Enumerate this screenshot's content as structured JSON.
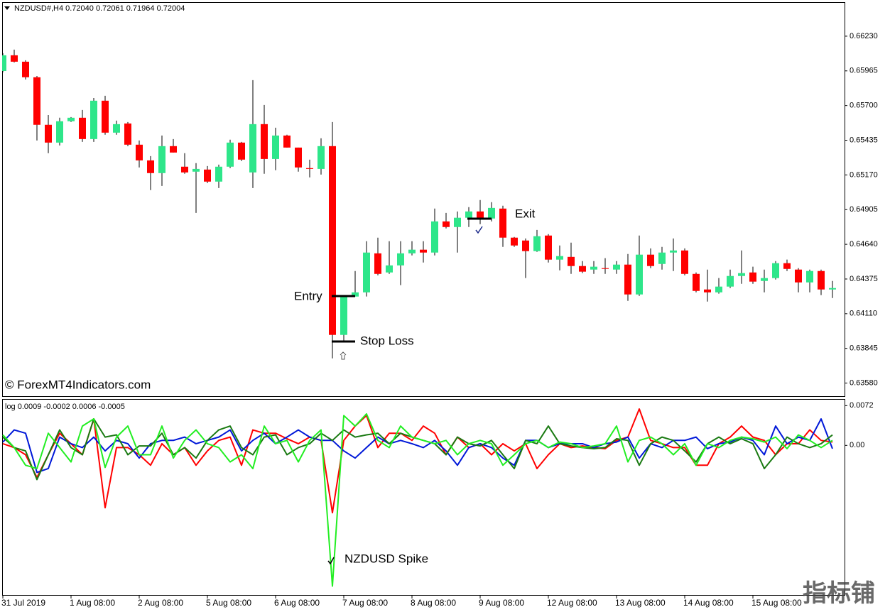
{
  "chart_data": [
    {
      "type": "candlestick",
      "title": "NZDUSD#,H4  0.72040 0.72061 0.71964 0.72004",
      "open": [
        0.65964,
        0.66084,
        0.66035,
        0.65916,
        0.65553,
        0.65417,
        0.6558,
        0.65607,
        0.65444,
        0.65737,
        0.65493,
        0.65563,
        0.65401,
        0.65281,
        0.65184,
        0.6539,
        0.65233,
        0.65195,
        0.65211,
        0.65119,
        0.65233,
        0.65417,
        0.65189,
        0.65558,
        0.65292,
        0.65471,
        0.65379,
        0.65222,
        0.65216,
        0.6539,
        0.63948,
        0.64241,
        0.64273,
        0.64571,
        0.64425,
        0.64479,
        0.64571,
        0.64599,
        0.64577,
        0.64815,
        0.64772,
        0.64843,
        0.64891,
        0.64837,
        0.64913,
        0.64691,
        0.64669,
        0.64588,
        0.64707,
        0.64523,
        0.64544,
        0.64474,
        0.64447,
        0.64458,
        0.64447,
        0.64485,
        0.64257,
        0.64561,
        0.6449,
        0.64577,
        0.64593,
        0.64414,
        0.64295,
        0.64273,
        0.64317,
        0.64398,
        0.64425,
        0.6436,
        0.64382,
        0.64496,
        0.64447,
        0.64349,
        0.64436,
        0.64295
      ],
      "high": [
        0.661,
        0.66127,
        0.66046,
        0.65926,
        0.65628,
        0.65607,
        0.65612,
        0.65666,
        0.65758,
        0.65775,
        0.65585,
        0.65574,
        0.65433,
        0.65314,
        0.65471,
        0.65444,
        0.65336,
        0.6526,
        0.65238,
        0.65249,
        0.65439,
        0.65422,
        0.65894,
        0.65704,
        0.65531,
        0.65477,
        0.65379,
        0.65287,
        0.6545,
        0.65574,
        0.64252,
        0.64436,
        0.64664,
        0.64691,
        0.64664,
        0.64664,
        0.64664,
        0.64664,
        0.64913,
        0.6488,
        0.64891,
        0.64924,
        0.64978,
        0.64962,
        0.64935,
        0.64696,
        0.64685,
        0.6475,
        0.64718,
        0.64631,
        0.64653,
        0.64512,
        0.64512,
        0.64534,
        0.64512,
        0.64566,
        0.64707,
        0.64609,
        0.6462,
        0.64685,
        0.64609,
        0.64425,
        0.64447,
        0.64382,
        0.64447,
        0.64593,
        0.64469,
        0.64447,
        0.64512,
        0.64523,
        0.64458,
        0.64447,
        0.64447,
        0.6436
      ],
      "low": [
        0.65954,
        0.66029,
        0.65899,
        0.65433,
        0.65336,
        0.65395,
        0.65574,
        0.65422,
        0.65422,
        0.65477,
        0.65477,
        0.6539,
        0.65227,
        0.65054,
        0.65086,
        0.65341,
        0.65179,
        0.6488,
        0.65108,
        0.6507,
        0.65222,
        0.65276,
        0.6507,
        0.65179,
        0.65206,
        0.65379,
        0.65195,
        0.65151,
        0.65173,
        0.63769,
        0.63905,
        0.64241,
        0.64241,
        0.64403,
        0.64414,
        0.64328,
        0.64555,
        0.64501,
        0.64555,
        0.64761,
        0.64577,
        0.64772,
        0.64794,
        0.64815,
        0.6462,
        0.6462,
        0.64382,
        0.64582,
        0.64501,
        0.64441,
        0.64414,
        0.6442,
        0.64414,
        0.64414,
        0.64414,
        0.64208,
        0.64246,
        0.64458,
        0.64447,
        0.64436,
        0.64403,
        0.64273,
        0.64203,
        0.64263,
        0.64306,
        0.64338,
        0.64338,
        0.64273,
        0.64371,
        0.64436,
        0.64273,
        0.64273,
        0.64252,
        0.6423
      ],
      "close": [
        0.66084,
        0.66035,
        0.65916,
        0.65553,
        0.65417,
        0.6558,
        0.65607,
        0.65444,
        0.65737,
        0.65493,
        0.65558,
        0.65401,
        0.65281,
        0.65184,
        0.6539,
        0.65341,
        0.65189,
        0.65216,
        0.65119,
        0.65233,
        0.65417,
        0.65287,
        0.65558,
        0.65292,
        0.65471,
        0.65379,
        0.65227,
        0.65216,
        0.6539,
        0.63948,
        0.64241,
        0.64273,
        0.64577,
        0.64414,
        0.64479,
        0.64571,
        0.64599,
        0.64577,
        0.64815,
        0.64772,
        0.64843,
        0.64891,
        0.64837,
        0.64918,
        0.64691,
        0.64631,
        0.64588,
        0.64702,
        0.64523,
        0.6455,
        0.64474,
        0.64431,
        0.64469,
        0.64452,
        0.64485,
        0.64257,
        0.64561,
        0.64474,
        0.64577,
        0.64593,
        0.64414,
        0.64284,
        0.64273,
        0.64317,
        0.64398,
        0.6442,
        0.64355,
        0.64382,
        0.64496,
        0.64452,
        0.64349,
        0.64436,
        0.64295,
        0.64306
      ],
      "up_color": "#2ee68a",
      "down_color": "#ff0000",
      "wick_color": "#000000",
      "ylim": [
        0.6348,
        0.6649
      ],
      "yticks": [
        {
          "value": 0.6623,
          "label": "0.66230"
        },
        0.65965,
        {
          "value": 0.657,
          "label": "0.65700"
        },
        0.65435,
        {
          "value": 0.6517,
          "label": "0.65170"
        },
        0.64905,
        {
          "value": 0.6464,
          "label": "0.64640"
        },
        0.64375,
        {
          "value": 0.6411,
          "label": "0.64110"
        },
        0.63845,
        {
          "value": 0.6358,
          "label": "0.63580"
        }
      ],
      "annotations": [
        "Entry",
        "Exit",
        "Stop Loss",
        "© ForexMT4Indicators.com"
      ]
    },
    {
      "type": "line",
      "title": "log 0.0009 -0.0002 0.0006 -0.0005",
      "categories": [
        "31 Jul 2019",
        null,
        null,
        null,
        null,
        null,
        "1 Aug 08:00",
        null,
        null,
        null,
        null,
        null,
        "2 Aug 08:00",
        null,
        null,
        null,
        null,
        null,
        "5 Aug 08:00",
        null,
        null,
        null,
        null,
        null,
        "6 Aug 08:00",
        null,
        null,
        null,
        null,
        null,
        "7 Aug 08:00",
        null,
        null,
        null,
        null,
        null,
        "8 Aug 08:00",
        null,
        null,
        null,
        null,
        null,
        "9 Aug 08:00",
        null,
        null,
        null,
        null,
        null,
        "12 Aug 08:00",
        null,
        null,
        null,
        null,
        null,
        "13 Aug 08:00",
        null,
        null,
        null,
        null,
        null,
        "14 Aug 08:00",
        null,
        null,
        null,
        null,
        null,
        "15 Aug 08:00",
        null,
        null,
        null,
        null,
        null,
        null,
        null
      ],
      "series": [
        {
          "color": "#ff0000",
          "values": [
            0.0003,
            -0.0004,
            -0.0017,
            -0.0058,
            -0.0017,
            0.0022,
            0.0003,
            -0.0017,
            0.0048,
            -0.0113,
            -0.0004,
            -0.0004,
            -0.0017,
            -0.0036,
            0.0003,
            -0.0017,
            -0.0004,
            -0.0036,
            -0.001,
            0.0009,
            0.0015,
            -0.0036,
            0.0028,
            0.0022,
            0.0022,
            0.0012,
            0.0003,
            0.0015,
            0.0009,
            -0.0122,
            0.0009,
            0.0035,
            0.0054,
            -0.0004,
            0.0022,
            0.0022,
            0.0009,
            0.0035,
            0.0022,
            -0.0017,
            0.0015,
            -0.0004,
            0.0003,
            -0.0017,
            0.0003,
            -0.001,
            0.0003,
            -0.0042,
            -0.0017,
            0.0003,
            -0.0004,
            -0.0001,
            -0.0004,
            -0.0006,
            0.0009,
            0.0015,
            0.0066,
            0.0009,
            0.0003,
            -0.0004,
            -0.0004,
            -0.0036,
            -0.0036,
            0.0003,
            0.0015,
            0.0035,
            0.0015,
            0.0009,
            -0.0017,
            0.0003,
            0.0003,
            0.0028,
            0.0009,
            0.0006
          ]
        },
        {
          "color": "#0018d8",
          "values": [
            0.0006,
            0.0028,
            0.0022,
            -0.0049,
            -0.0042,
            0.0015,
            0.0003,
            -0.0004,
            0.0015,
            -0.001,
            0.0009,
            0.0003,
            -0.0023,
            0.0003,
            0.0009,
            0.0009,
            0.0015,
            0.0003,
            0.0009,
            0.0015,
            0.0028,
            -0.001,
            0.0009,
            0.0022,
            0.0003,
            0.0015,
            0.0028,
            0.0015,
            0.0009,
            0.0009,
            -0.001,
            -0.0023,
            -0.0004,
            0.0015,
            0.0003,
            0.0009,
            0.0003,
            -0.0004,
            0.0009,
            -0.001,
            -0.0036,
            -0.0004,
            0.0003,
            -0.0004,
            -0.0023,
            -0.0036,
            0.0009,
            0.0009,
            -0.0004,
            0.0003,
            0.0003,
            0.0003,
            -0.0004,
            0.0003,
            0.0006,
            0.0015,
            -0.0023,
            0.0003,
            -0.0004,
            0.0009,
            0.0009,
            0.0015,
            -0.0006,
            0.0003,
            0.0006,
            0.0015,
            0.0009,
            -0.0017,
            0.0035,
            0.0003,
            0.0015,
            0.0009,
            0.0048,
            -0.0006
          ]
        },
        {
          "color": "#1a7a12",
          "values": [
            0.0015,
            -0.0004,
            -0.001,
            -0.0062,
            -0.0017,
            0.0028,
            -0.0004,
            -0.0017,
            0.0048,
            0.0015,
            0.0019,
            -0.0017,
            -0.0001,
            -0.0001,
            0.0022,
            -0.0017,
            -0.0004,
            -0.0023,
            0.0009,
            0.0028,
            0.0035,
            -0.0004,
            -0.0017,
            0.0015,
            0.0019,
            -0.0017,
            -0.0004,
            0.0003,
            0.0022,
            0.0009,
            0.0028,
            0.0015,
            0.0019,
            0.0022,
            0.0003,
            0.0022,
            0.0015,
            0.0009,
            0.0003,
            -0.0017,
            0.0015,
            0.0003,
            -0.0001,
            0.0009,
            -0.0017,
            -0.0042,
            0.0009,
            0.0003,
            0.0035,
            0.0003,
            -0.0001,
            -0.0004,
            -0.0006,
            -0.0004,
            0.0012,
            0.0009,
            -0.0036,
            0.0003,
            0.0015,
            0.0009,
            -0.001,
            -0.003,
            0.0003,
            0.0015,
            0.0003,
            0.0012,
            0.0003,
            -0.0042,
            -0.0017,
            0.0015,
            0.0003,
            -0.0004,
            0.0003,
            0.0019
          ]
        },
        {
          "color": "#22ee22",
          "values": [
            0.0019,
            -0.0004,
            -0.0036,
            -0.0042,
            0.0022,
            -0.0004,
            -0.003,
            0.0035,
            0.0048,
            -0.004,
            0.0015,
            0.0035,
            -0.0017,
            -0.0017,
            0.0035,
            -0.0023,
            0.0009,
            0.0028,
            0.0003,
            -0.0004,
            -0.003,
            -0.0017,
            -0.0042,
            0.0035,
            0.0003,
            0.0009,
            -0.003,
            0.0009,
            0.0028,
            -0.0255,
            0.0054,
            0.0035,
            0.0057,
            0.0009,
            -0.0004,
            0.0035,
            0.0015,
            0.0009,
            0.0003,
            0.0009,
            -0.0017,
            0.0003,
            0.0009,
            0.0003,
            -0.0036,
            -0.0017,
            0.0003,
            0.0009,
            -0.0004,
            0.0006,
            0.0003,
            -0.0004,
            -0.0001,
            0.0003,
            0.0035,
            -0.003,
            0.0009,
            0.0015,
            0.0003,
            -0.0017,
            0.0003,
            -0.0036,
            0.0003,
            -0.0004,
            0.0009,
            0.0015,
            0.0012,
            0.0006,
            0.0015,
            -0.0006,
            0.0019,
            0.0009,
            -0.0004,
            0.0009
          ]
        }
      ],
      "ylim": [
        -0.0271,
        0.0084
      ],
      "yticks": [
        0.0072,
        {
          "value": 0,
          "label": "0.00"
        }
      ],
      "annotation": "NZDUSD Spike"
    }
  ],
  "watermark": "指标铺"
}
